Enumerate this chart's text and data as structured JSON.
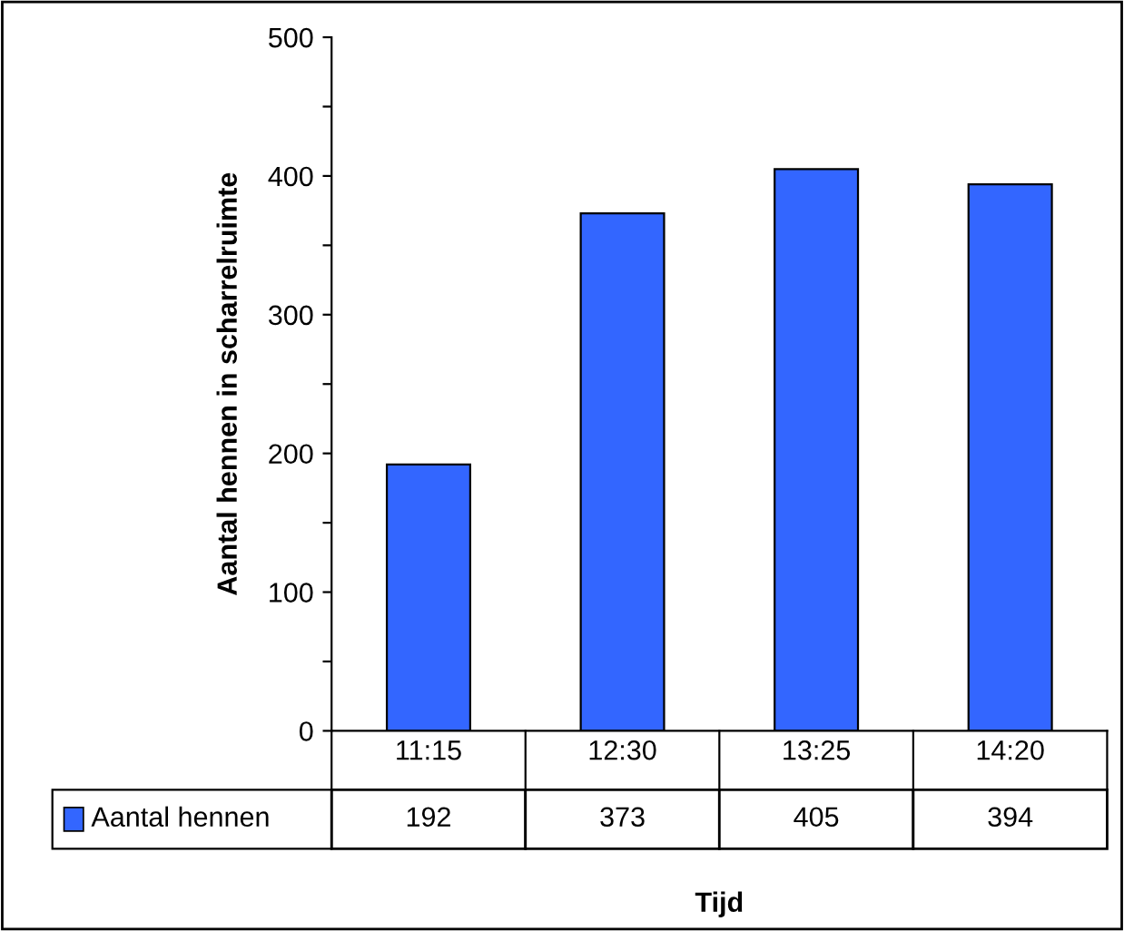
{
  "chart_data": {
    "type": "bar",
    "xlabel": "Tijd",
    "ylabel": "Aantal hennen in scharrelruimte",
    "categories": [
      "11:15",
      "12:30",
      "13:25",
      "14:20"
    ],
    "series": [
      {
        "name": "Aantal hennen",
        "color": "#3366ff",
        "values": [
          192,
          373,
          405,
          394
        ]
      }
    ],
    "ylim": [
      0,
      500
    ],
    "yticks": [
      0,
      {
        "value": 50,
        "label": null
      },
      100,
      {
        "value": 150,
        "label": null
      },
      200,
      {
        "value": 250,
        "label": null
      },
      300,
      {
        "value": 350,
        "label": null
      },
      400,
      {
        "value": 450,
        "label": null
      },
      500
    ],
    "data_labels": true,
    "grid": false,
    "legend": "bottom left"
  }
}
